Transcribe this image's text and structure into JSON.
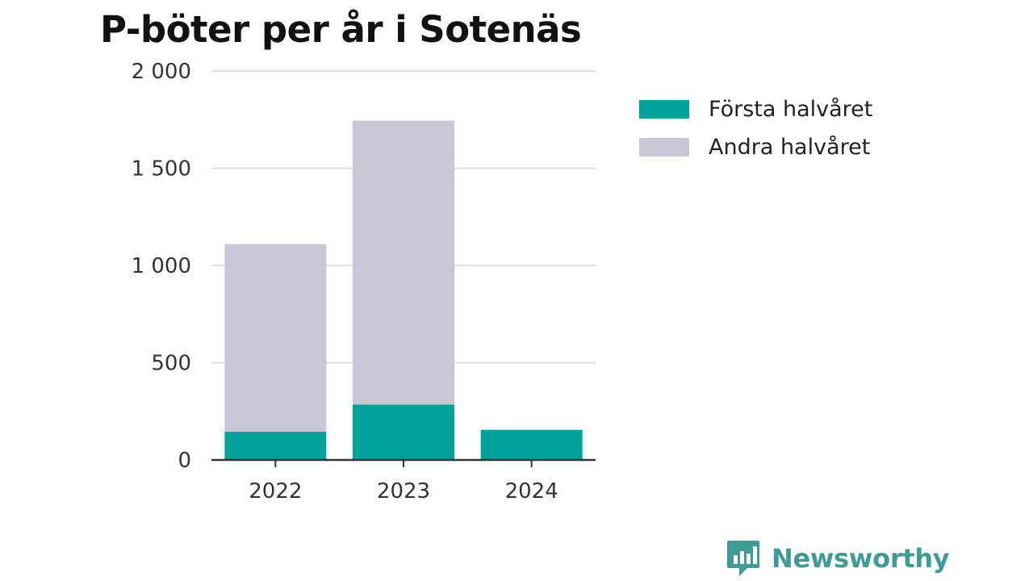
{
  "chart_data": {
    "type": "bar",
    "stacked": true,
    "title": "P-böter per år i Sotenäs",
    "xlabel": "",
    "ylabel": "",
    "categories": [
      "2022",
      "2023",
      "2024"
    ],
    "series": [
      {
        "name": "Första halvåret",
        "values": [
          145,
          285,
          155
        ],
        "color": "#00a39a"
      },
      {
        "name": "Andra halvåret",
        "values": [
          965,
          1460,
          0
        ],
        "color": "#c8c7d3"
      }
    ],
    "ylim": [
      0,
      2000
    ],
    "yticks": [
      0,
      500,
      1000,
      1500,
      2000
    ],
    "ytick_labels": [
      "0",
      "500",
      "1 000",
      "1 500",
      "2 000"
    ],
    "grid": true,
    "legend_position": "right"
  },
  "brand": {
    "name": "Newsworthy",
    "color": "#3f9b95",
    "icon": "speech-bubble-bar-chart-icon"
  }
}
